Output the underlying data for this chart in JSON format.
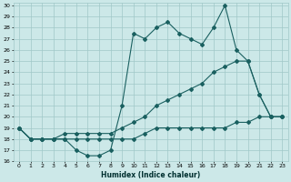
{
  "xlabel": "Humidex (Indice chaleur)",
  "bg_color": "#cce8e8",
  "grid_color": "#a0c8c8",
  "line_color": "#1a6060",
  "xlim": [
    -0.5,
    23.5
  ],
  "ylim": [
    16,
    30.2
  ],
  "xticks": [
    0,
    1,
    2,
    3,
    4,
    5,
    6,
    7,
    8,
    9,
    10,
    11,
    12,
    13,
    14,
    15,
    16,
    17,
    18,
    19,
    20,
    21,
    22,
    23
  ],
  "yticks": [
    16,
    17,
    18,
    19,
    20,
    21,
    22,
    23,
    24,
    25,
    26,
    27,
    28,
    29,
    30
  ],
  "series1": [
    19,
    18,
    18,
    18,
    18,
    17,
    16.5,
    16.5,
    17,
    21,
    27.5,
    27,
    28,
    28.5,
    27.5,
    27,
    26.5,
    28,
    30,
    26,
    25,
    22,
    20,
    20
  ],
  "series2": [
    19,
    18,
    18,
    18,
    18,
    18,
    18,
    18,
    18,
    18,
    18,
    18.5,
    19,
    19,
    19,
    19,
    19,
    19,
    19,
    19.5,
    19.5,
    20,
    20,
    20
  ],
  "series3": [
    19,
    18,
    18,
    18,
    18.5,
    18.5,
    18.5,
    18.5,
    18.5,
    19,
    19.5,
    20,
    21,
    21.5,
    22,
    22.5,
    23,
    24,
    24.5,
    25,
    25,
    22,
    20,
    20
  ]
}
